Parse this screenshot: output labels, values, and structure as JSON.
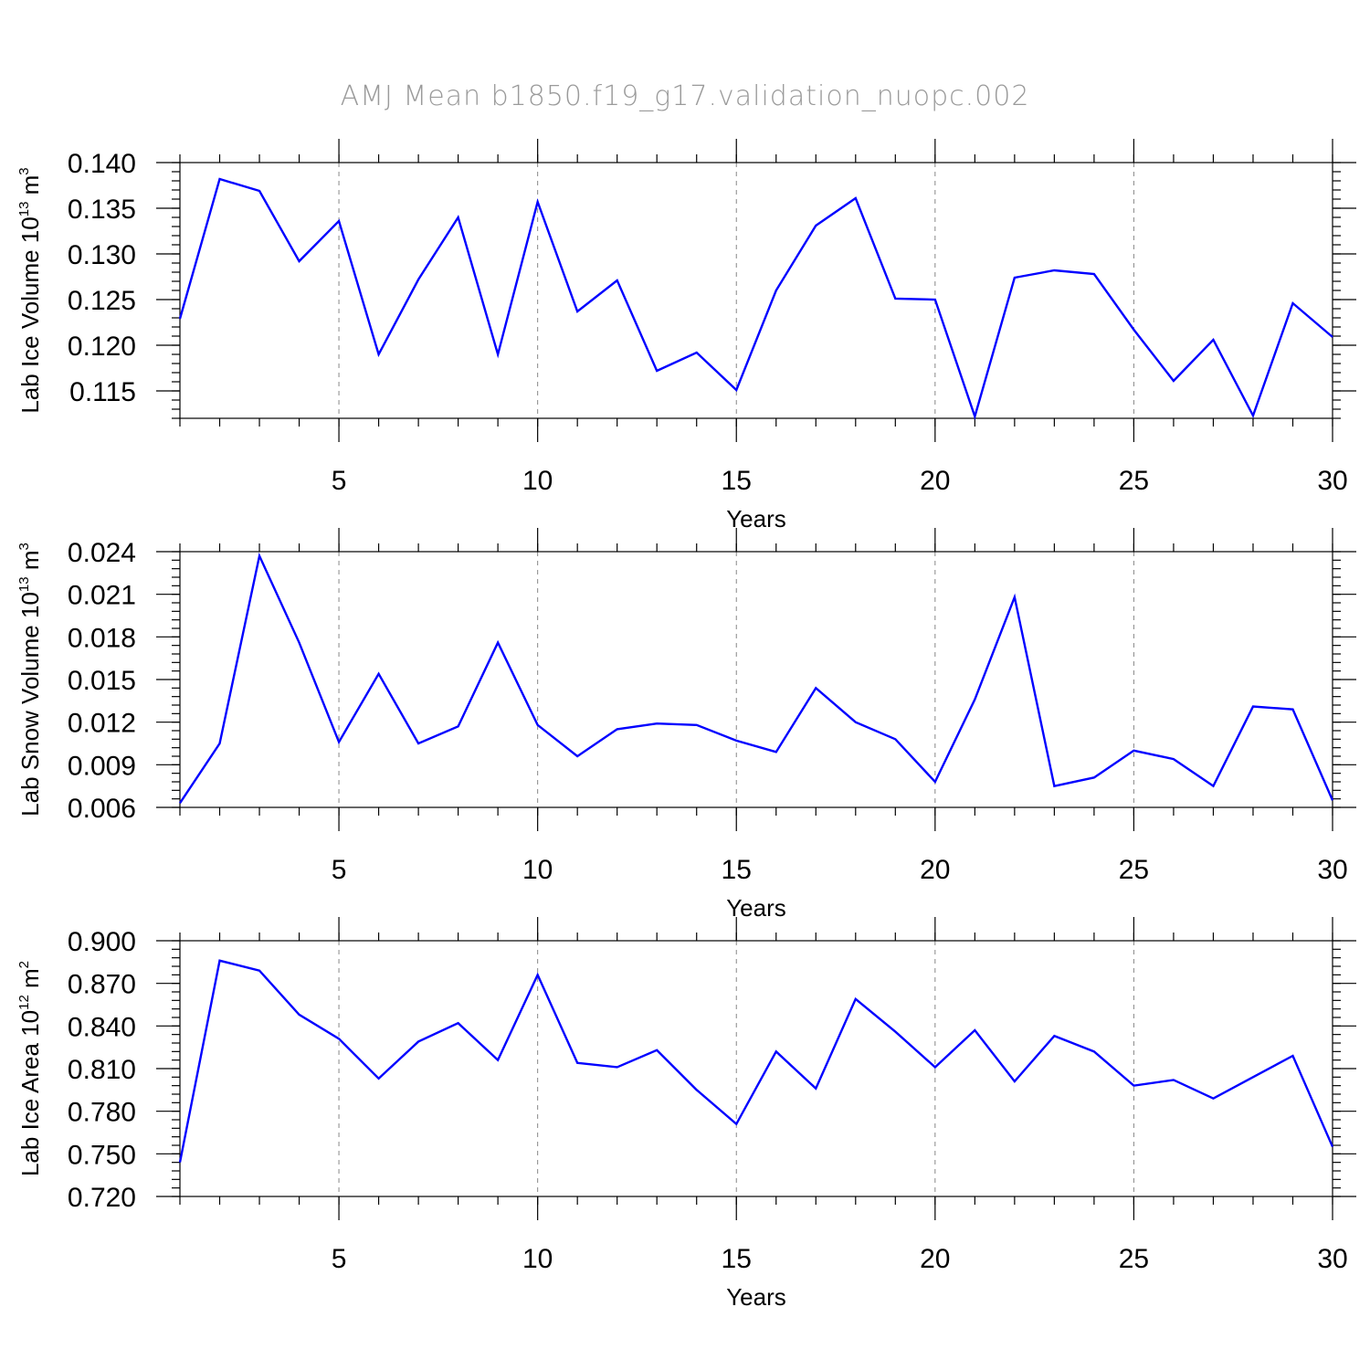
{
  "figure": {
    "title": "AMJ Mean b1850.f19_g17.validation_nuopc.002"
  },
  "colors": {
    "series": "#0000ff",
    "title": "#9a9a9a",
    "grid": "#888888"
  },
  "chart_data": [
    {
      "type": "line",
      "xlabel": "Years",
      "ylabel": {
        "base": "Lab Ice Volume 10",
        "exp": "13",
        "unit": " m",
        "unit_exp": "3"
      },
      "xlim": [
        1,
        30
      ],
      "ylim": [
        0.112,
        0.14
      ],
      "xticks": [
        5,
        10,
        15,
        20,
        25,
        30
      ],
      "yticks": [
        0.115,
        0.12,
        0.125,
        0.13,
        0.135,
        0.14
      ],
      "ytick_labels": [
        "0.115",
        "0.120",
        "0.125",
        "0.130",
        "0.135",
        "0.140"
      ],
      "grid": "x-dashed",
      "x": [
        1,
        2,
        3,
        4,
        5,
        6,
        7,
        8,
        9,
        10,
        11,
        12,
        13,
        14,
        15,
        16,
        17,
        18,
        19,
        20,
        21,
        22,
        23,
        24,
        25,
        26,
        27,
        28,
        29,
        30
      ],
      "series": [
        {
          "values": [
            0.1229,
            0.1382,
            0.1369,
            0.1292,
            0.1336,
            0.119,
            0.1272,
            0.134,
            0.119,
            0.1357,
            0.1237,
            0.1271,
            0.1172,
            0.1192,
            0.1151,
            0.126,
            0.1331,
            0.1361,
            0.1251,
            0.125,
            0.1122,
            0.1274,
            0.1282,
            0.1278,
            0.1217,
            0.1161,
            0.1206,
            0.1123,
            0.1246,
            0.1209
          ]
        }
      ]
    },
    {
      "type": "line",
      "xlabel": "Years",
      "ylabel": {
        "base": "Lab Snow Volume 10",
        "exp": "13",
        "unit": " m",
        "unit_exp": "3"
      },
      "xlim": [
        1,
        30
      ],
      "ylim": [
        0.006,
        0.024
      ],
      "xticks": [
        5,
        10,
        15,
        20,
        25,
        30
      ],
      "yticks": [
        0.006,
        0.009,
        0.012,
        0.015,
        0.018,
        0.021,
        0.024
      ],
      "ytick_labels": [
        "0.006",
        "0.009",
        "0.012",
        "0.015",
        "0.018",
        "0.021",
        "0.024"
      ],
      "grid": "x-dashed",
      "x": [
        1,
        2,
        3,
        4,
        5,
        6,
        7,
        8,
        9,
        10,
        11,
        12,
        13,
        14,
        15,
        16,
        17,
        18,
        19,
        20,
        21,
        22,
        23,
        24,
        25,
        26,
        27,
        28,
        29,
        30
      ],
      "series": [
        {
          "values": [
            0.0063,
            0.0105,
            0.0237,
            0.0176,
            0.0106,
            0.0154,
            0.0105,
            0.0117,
            0.0176,
            0.0118,
            0.0096,
            0.0115,
            0.0119,
            0.0118,
            0.0107,
            0.0099,
            0.0144,
            0.012,
            0.0108,
            0.0078,
            0.0136,
            0.0208,
            0.0075,
            0.0081,
            0.01,
            0.0094,
            0.0075,
            0.0131,
            0.0129,
            0.0065
          ]
        }
      ]
    },
    {
      "type": "line",
      "xlabel": "Years",
      "ylabel": {
        "base": "Lab Ice Area 10",
        "exp": "12",
        "unit": " m",
        "unit_exp": "2"
      },
      "xlim": [
        1,
        30
      ],
      "ylim": [
        0.72,
        0.9
      ],
      "xticks": [
        5,
        10,
        15,
        20,
        25,
        30
      ],
      "yticks": [
        0.72,
        0.75,
        0.78,
        0.81,
        0.84,
        0.87,
        0.9
      ],
      "ytick_labels": [
        "0.720",
        "0.750",
        "0.780",
        "0.810",
        "0.840",
        "0.870",
        "0.900"
      ],
      "grid": "x-dashed",
      "x": [
        1,
        2,
        3,
        4,
        5,
        6,
        7,
        8,
        9,
        10,
        11,
        12,
        13,
        14,
        15,
        16,
        17,
        18,
        19,
        20,
        21,
        22,
        23,
        24,
        25,
        26,
        27,
        28,
        29,
        30
      ],
      "series": [
        {
          "values": [
            0.744,
            0.886,
            0.879,
            0.848,
            0.831,
            0.803,
            0.829,
            0.842,
            0.816,
            0.876,
            0.814,
            0.811,
            0.823,
            0.795,
            0.771,
            0.822,
            0.796,
            0.859,
            0.836,
            0.811,
            0.837,
            0.801,
            0.833,
            0.822,
            0.798,
            0.802,
            0.789,
            0.804,
            0.819,
            0.755
          ]
        }
      ]
    }
  ]
}
